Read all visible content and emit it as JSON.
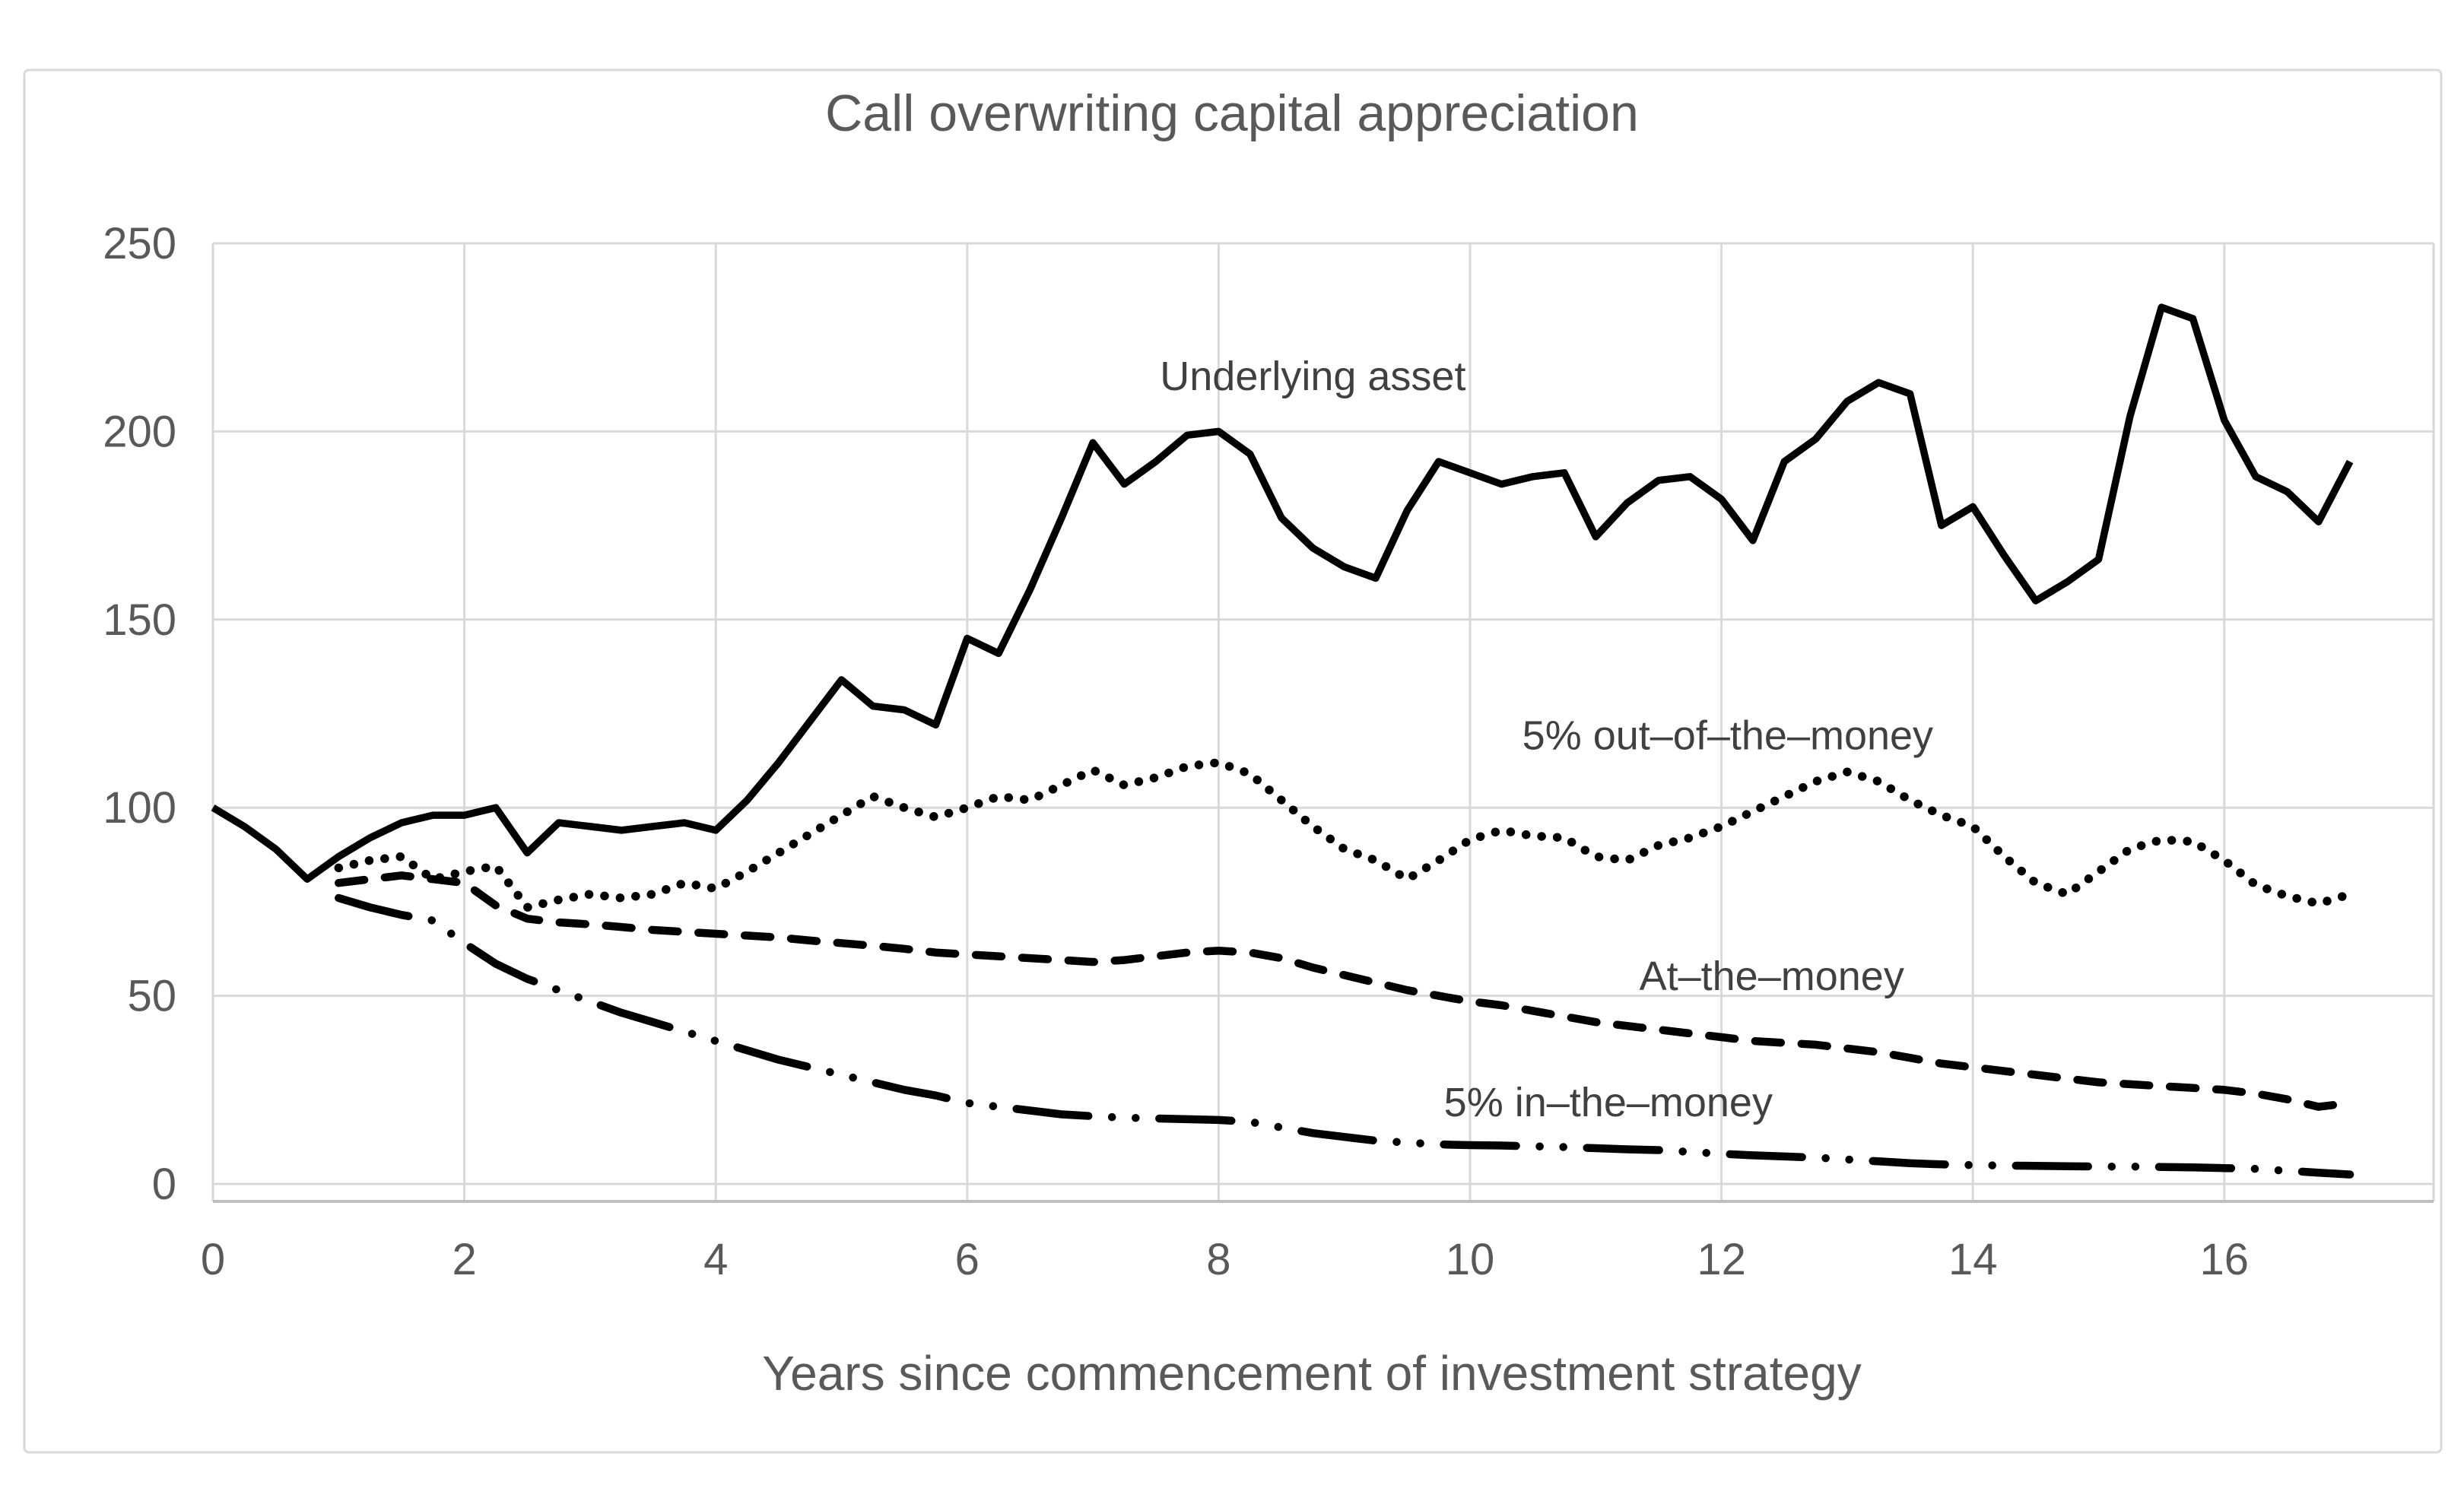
{
  "title": "Call overwriting capital appreciation",
  "x_axis": {
    "title": "Years since commencement of investment strategy",
    "ticks": [
      0,
      2,
      4,
      6,
      8,
      10,
      12,
      14,
      16
    ],
    "min": 0,
    "max": 17.65
  },
  "y_axis": {
    "ticks": [
      0,
      50,
      100,
      150,
      200,
      250
    ],
    "min": 0,
    "max": 250
  },
  "colors": {
    "line": "#000000",
    "text": "#595959",
    "gridline": "#d9d9d9",
    "axis": "#bfbfbf",
    "background": "#ffffff"
  },
  "annotations": [
    {
      "text": "Underlying asset",
      "x_year": 8.75,
      "y_value": 211
    },
    {
      "text": "5% out–of–the–money",
      "x_year": 12.05,
      "y_value": 115.5
    },
    {
      "text": "At–the–money",
      "x_year": 12.4,
      "y_value": 51.5
    },
    {
      "text": "5% in–the–money",
      "x_year": 11.1,
      "y_value": 18
    }
  ],
  "chart_data": {
    "type": "line",
    "title": "Call overwriting capital appreciation",
    "xlabel": "Years since commencement of investment strategy",
    "ylabel": "",
    "xlim": [
      0,
      17.65
    ],
    "ylim": [
      0,
      250
    ],
    "grid": true,
    "legend_position": "inline-labels",
    "x_step": 0.25,
    "series": [
      {
        "name": "underlying-asset",
        "label": "Underlying asset",
        "style": "solid",
        "x_start": 0,
        "values": [
          100,
          95,
          89,
          81,
          87,
          92,
          96,
          98,
          98,
          100,
          88,
          96,
          95,
          94,
          95,
          96,
          94,
          102,
          112,
          123,
          134,
          127,
          126,
          122,
          145,
          141,
          158,
          177,
          197,
          186,
          192,
          199,
          200,
          194,
          177,
          169,
          164,
          161,
          179,
          192,
          189,
          186,
          188,
          189,
          172,
          181,
          187,
          188,
          182,
          171,
          192,
          198,
          208,
          213,
          210,
          175,
          180,
          167,
          155,
          160,
          166,
          204,
          233,
          230,
          203,
          188,
          184,
          176,
          192
        ]
      },
      {
        "name": "out-of-the-money-5pct",
        "label": "5% out–of–the–money",
        "style": "dotted",
        "x_start": 1,
        "values": [
          84,
          86,
          87,
          81,
          83,
          84.5,
          73.5,
          75.5,
          77,
          76,
          77,
          80,
          78.5,
          83,
          88,
          93,
          98,
          103,
          100,
          97.5,
          100,
          103,
          102,
          106,
          110,
          106,
          108,
          111,
          112,
          109,
          102,
          95,
          89,
          86,
          81,
          86,
          91.5,
          94,
          92.5,
          92,
          87,
          86,
          90,
          92,
          95,
          99,
          103,
          107,
          109.5,
          107,
          102,
          98,
          95,
          87,
          80,
          77,
          83,
          89,
          91.5,
          91,
          86,
          79.5,
          76.5,
          74.5,
          77
        ]
      },
      {
        "name": "at-the-money",
        "label": "At–the–money",
        "style": "dashed",
        "x_start": 1,
        "values": [
          80,
          81,
          82,
          81,
          80,
          74,
          70.5,
          69.5,
          69,
          68.3,
          67.5,
          67,
          66.5,
          66,
          65.5,
          64.7,
          64,
          63.3,
          62.5,
          61.5,
          61,
          60.5,
          60,
          59.5,
          59,
          59.5,
          60.5,
          61.5,
          62,
          61.5,
          60,
          57.5,
          55.5,
          53.5,
          51.5,
          50,
          48.5,
          47.5,
          46,
          44.5,
          43,
          42,
          41,
          40,
          39,
          38,
          37.5,
          37,
          36,
          35,
          33.5,
          32,
          31,
          30,
          29,
          28,
          27,
          26.5,
          26,
          25.5,
          25,
          24,
          22.5,
          20.5,
          21.5
        ]
      },
      {
        "name": "in-the-money-5pct",
        "label": "5% in–the–money",
        "style": "dash-dot-dot",
        "x_start": 1,
        "values": [
          76,
          73.5,
          71.5,
          70,
          64,
          58.5,
          54.5,
          51.5,
          48.5,
          45.5,
          43,
          40.5,
          38,
          35.5,
          33,
          31,
          29,
          27,
          25,
          23.5,
          21.5,
          20.5,
          19.5,
          18.5,
          18,
          17.6,
          17.4,
          17.2,
          17,
          16.5,
          15,
          13.5,
          12.5,
          11.5,
          11,
          10.5,
          10.3,
          10.2,
          10,
          9.8,
          9.5,
          9.2,
          9,
          8.5,
          8,
          7.6,
          7.3,
          7,
          6.5,
          6,
          5.5,
          5.2,
          5,
          4.9,
          4.8,
          4.7,
          4.6,
          4.6,
          4.5,
          4.4,
          4.2,
          4,
          3.5,
          3,
          2.5
        ]
      }
    ]
  }
}
